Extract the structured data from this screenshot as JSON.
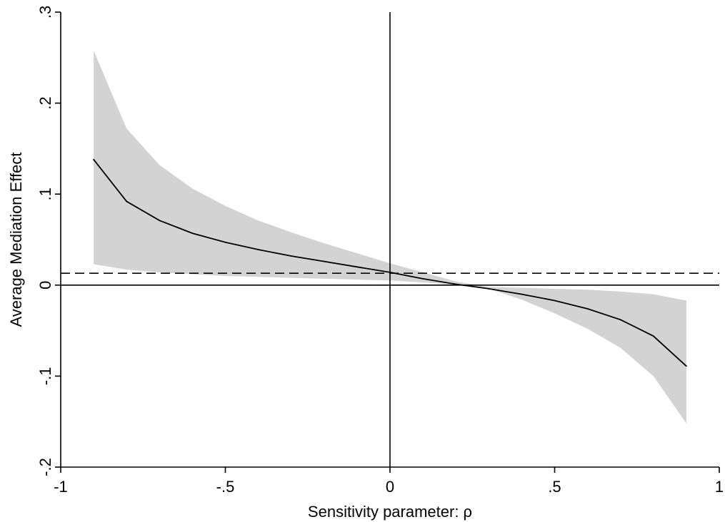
{
  "chart_data": {
    "type": "area",
    "title": "",
    "xlabel": "Sensitivity parameter: ρ",
    "ylabel": "Average Mediation Effect",
    "xlim": [
      -1,
      1
    ],
    "ylim": [
      -0.2,
      0.3
    ],
    "xticks": [
      -1,
      -0.5,
      0,
      0.5,
      1
    ],
    "xtick_labels": [
      "-1",
      "-.5",
      "0",
      ".5",
      "1"
    ],
    "yticks": [
      -0.2,
      -0.1,
      0,
      0.1,
      0.2,
      0.3
    ],
    "ytick_labels": [
      "-.2",
      "-.1",
      "0",
      ".1",
      ".2",
      ".3"
    ],
    "grid": false,
    "legend": "none",
    "x": [
      -0.9,
      -0.8,
      -0.7,
      -0.6,
      -0.5,
      -0.4,
      -0.3,
      -0.2,
      -0.1,
      0,
      0.1,
      0.2,
      0.3,
      0.4,
      0.5,
      0.6,
      0.7,
      0.8,
      0.9
    ],
    "series": [
      {
        "values": [
          0.138,
          0.092,
          0.071,
          0.057,
          0.047,
          0.039,
          0.032,
          0.026,
          0.02,
          0.014,
          0.007,
          0.001,
          -0.004,
          -0.01,
          -0.017,
          -0.026,
          -0.038,
          -0.056,
          -0.089
        ],
        "color": "#000000"
      }
    ],
    "band": {
      "lower": [
        0.023,
        0.017,
        0.014,
        0.012,
        0.01,
        0.009,
        0.008,
        0.007,
        0.006,
        0.005,
        0.003,
        0.0,
        -0.004,
        -0.016,
        -0.031,
        -0.048,
        -0.069,
        -0.1,
        -0.152
      ],
      "upper": [
        0.258,
        0.172,
        0.132,
        0.106,
        0.087,
        0.071,
        0.058,
        0.046,
        0.035,
        0.024,
        0.014,
        0.004,
        -0.002,
        -0.003,
        -0.004,
        -0.005,
        -0.007,
        -0.01,
        -0.017
      ],
      "color": "#d3d3d3"
    },
    "reference_lines": {
      "horizontal_dashed": 0.013,
      "horizontal_solid": 0,
      "vertical_solid": 0
    }
  }
}
